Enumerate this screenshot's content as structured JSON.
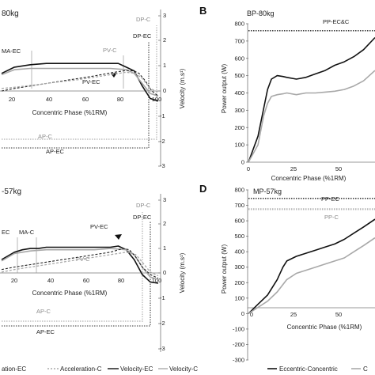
{
  "figure": {
    "panels": [
      {
        "id": "A",
        "letter": "",
        "title": "80kg"
      },
      {
        "id": "B",
        "letter": "B",
        "title": "BP-80kg"
      },
      {
        "id": "C",
        "letter": "",
        "title": "-57kg"
      },
      {
        "id": "D",
        "letter": "D",
        "title": "MP-57kg"
      }
    ],
    "legend_items": [
      "ation-EC",
      "Acceleration-C",
      "Velocity-EC",
      "Velocity-C",
      "Eccentric-Concentric",
      "C"
    ]
  },
  "chart_data": [
    {
      "panel": "A",
      "type": "line",
      "title": "80kg",
      "xlabel": "Concentric Phase (%1RM)",
      "ylabel_right": "Velocity (m.s¹)",
      "x_ticks": [
        "20",
        "40",
        "60",
        "80",
        "100"
      ],
      "y_right_ticks": [
        "3",
        "2",
        "1",
        "0",
        "-1",
        "-2",
        "-3"
      ],
      "xlim": [
        2,
        100
      ],
      "ylim_right": [
        -3,
        3
      ],
      "annotations": [
        "MA-EC",
        "PV-C",
        "DP-C",
        "DP-EC",
        "PV-EC",
        "AP-C",
        "AP-EC"
      ],
      "series": [
        {
          "name": "Velocity-EC",
          "style": "solid-black",
          "x": [
            2,
            10,
            20,
            30,
            40,
            50,
            60,
            70,
            75,
            80,
            85,
            90,
            95,
            100
          ],
          "y": [
            0.7,
            0.95,
            1.05,
            1.1,
            1.1,
            1.1,
            1.1,
            1.1,
            1.1,
            0.95,
            0.8,
            0.2,
            -0.3,
            -0.4
          ]
        },
        {
          "name": "Velocity-C",
          "style": "solid-grey",
          "x": [
            2,
            10,
            20,
            30,
            40,
            50,
            60,
            70,
            80,
            85,
            90,
            95,
            100
          ],
          "y": [
            0.65,
            0.85,
            0.9,
            0.9,
            0.9,
            0.9,
            0.9,
            0.9,
            0.85,
            0.7,
            0.3,
            -0.1,
            -0.2
          ]
        },
        {
          "name": "Acceleration-EC",
          "style": "dashed-black",
          "x": [
            2,
            10,
            20,
            30,
            40,
            50,
            60,
            70,
            80,
            85,
            88,
            92,
            96,
            100
          ],
          "y": [
            0.0,
            0.1,
            0.2,
            0.3,
            0.4,
            0.5,
            0.6,
            0.72,
            0.82,
            0.8,
            0.7,
            0.4,
            0.0,
            -0.2
          ]
        },
        {
          "name": "Acceleration-C",
          "style": "dashed-grey",
          "x": [
            2,
            10,
            20,
            30,
            40,
            50,
            60,
            70,
            80,
            86,
            90,
            95,
            100
          ],
          "y": [
            0.1,
            0.15,
            0.22,
            0.3,
            0.38,
            0.45,
            0.55,
            0.65,
            0.75,
            0.7,
            0.5,
            0.1,
            -0.05
          ]
        }
      ]
    },
    {
      "panel": "B",
      "type": "line",
      "title": "BP-80kg",
      "xlabel": "Concentric Phase (%1RM)",
      "ylabel": "Power output (W)",
      "x_ticks": [
        "0",
        "25",
        "50"
      ],
      "y_ticks": [
        "0",
        "100",
        "200",
        "300",
        "400",
        "500",
        "600",
        "700",
        "800"
      ],
      "xlim": [
        0,
        66
      ],
      "ylim": [
        0,
        800
      ],
      "annotations": [
        "PP-EC&C"
      ],
      "series": [
        {
          "name": "Eccentric-Concentric",
          "style": "solid-black",
          "x": [
            0,
            5,
            10,
            12,
            15,
            18,
            20,
            25,
            30,
            35,
            40,
            45,
            50,
            55,
            60,
            66
          ],
          "y": [
            0,
            150,
            420,
            480,
            500,
            495,
            490,
            480,
            490,
            510,
            530,
            560,
            580,
            610,
            650,
            720
          ]
        },
        {
          "name": "C",
          "style": "solid-grey",
          "x": [
            0,
            5,
            8,
            10,
            12,
            15,
            18,
            20,
            25,
            30,
            35,
            40,
            45,
            50,
            55,
            60,
            66
          ],
          "y": [
            0,
            100,
            270,
            340,
            380,
            390,
            395,
            400,
            390,
            400,
            400,
            405,
            410,
            420,
            440,
            470,
            530
          ]
        },
        {
          "name": "PP-EC&C",
          "style": "dotted-black",
          "x": [
            0,
            66
          ],
          "y": [
            760,
            760
          ]
        }
      ]
    },
    {
      "panel": "C",
      "type": "line",
      "title": "-57kg",
      "xlabel": "Concentric Phase (%1RM)",
      "ylabel_right": "Velocity (m.s¹)",
      "x_ticks": [
        "20",
        "40",
        "60",
        "80",
        "100"
      ],
      "y_right_ticks": [
        "3",
        "2",
        "1",
        "0",
        "-1",
        "-2",
        "-3"
      ],
      "xlim": [
        2,
        100
      ],
      "ylim_right": [
        -3,
        3
      ],
      "annotations": [
        "EC",
        "MA-C",
        "PV-EC",
        "DP-C",
        "DP-EC",
        "PV-C",
        "AP-C",
        "AP-EC"
      ],
      "series": [
        {
          "name": "Velocity-EC",
          "style": "solid-black",
          "x": [
            2,
            10,
            15,
            20,
            25,
            30,
            40,
            50,
            60,
            70,
            75,
            80,
            85,
            90,
            95,
            100
          ],
          "y": [
            0.6,
            0.9,
            1.0,
            1.05,
            1.05,
            1.1,
            1.1,
            1.1,
            1.1,
            1.1,
            1.15,
            1.0,
            0.6,
            0.0,
            -0.3,
            -0.35
          ]
        },
        {
          "name": "Velocity-C",
          "style": "solid-grey",
          "x": [
            2,
            10,
            20,
            30,
            40,
            50,
            60,
            70,
            80,
            85,
            90,
            95,
            100
          ],
          "y": [
            0.55,
            0.85,
            0.95,
            1.0,
            1.0,
            1.0,
            1.0,
            1.05,
            1.0,
            0.8,
            0.3,
            -0.1,
            -0.2
          ]
        },
        {
          "name": "Acceleration-EC",
          "style": "dashed-black",
          "x": [
            2,
            10,
            20,
            30,
            40,
            50,
            60,
            70,
            78,
            82,
            86,
            90,
            95,
            100
          ],
          "y": [
            0.2,
            0.3,
            0.4,
            0.5,
            0.6,
            0.7,
            0.8,
            0.9,
            1.05,
            1.0,
            0.7,
            0.3,
            0.0,
            -0.15
          ]
        },
        {
          "name": "Acceleration-C",
          "style": "dashed-grey",
          "x": [
            2,
            10,
            20,
            30,
            40,
            50,
            60,
            70,
            80,
            86,
            90,
            95,
            100
          ],
          "y": [
            0.1,
            0.2,
            0.3,
            0.4,
            0.5,
            0.6,
            0.7,
            0.8,
            0.9,
            0.8,
            0.5,
            0.1,
            -0.05
          ]
        }
      ]
    },
    {
      "panel": "D",
      "type": "line",
      "title": "MP-57kg",
      "xlabel": "Concentric Phase (%1RM)",
      "ylabel": "Power output (W)",
      "x_ticks": [
        "0",
        "25",
        "50"
      ],
      "y_ticks": [
        "-300",
        "-200",
        "-100",
        "0",
        "100",
        "200",
        "300",
        "400",
        "500",
        "600",
        "700",
        "800"
      ],
      "xlim": [
        0,
        66
      ],
      "ylim": [
        -300,
        800
      ],
      "annotations": [
        "PP-EC",
        "PP-C"
      ],
      "series": [
        {
          "name": "Eccentric-Concentric",
          "style": "solid-black",
          "x": [
            0,
            5,
            10,
            15,
            18,
            20,
            25,
            30,
            35,
            40,
            45,
            50,
            55,
            60,
            66
          ],
          "y": [
            0,
            60,
            120,
            220,
            300,
            340,
            370,
            390,
            410,
            430,
            450,
            480,
            520,
            560,
            610
          ]
        },
        {
          "name": "C",
          "style": "solid-grey",
          "x": [
            0,
            5,
            10,
            15,
            20,
            25,
            30,
            35,
            40,
            45,
            50,
            55,
            60,
            66
          ],
          "y": [
            0,
            40,
            80,
            140,
            220,
            260,
            280,
            300,
            320,
            340,
            360,
            400,
            440,
            490
          ]
        },
        {
          "name": "PP-EC",
          "style": "dotted-black",
          "x": [
            0,
            66
          ],
          "y": [
            745,
            745
          ]
        },
        {
          "name": "PP-C",
          "style": "dotted-grey",
          "x": [
            0,
            66
          ],
          "y": [
            675,
            675
          ]
        }
      ]
    }
  ]
}
